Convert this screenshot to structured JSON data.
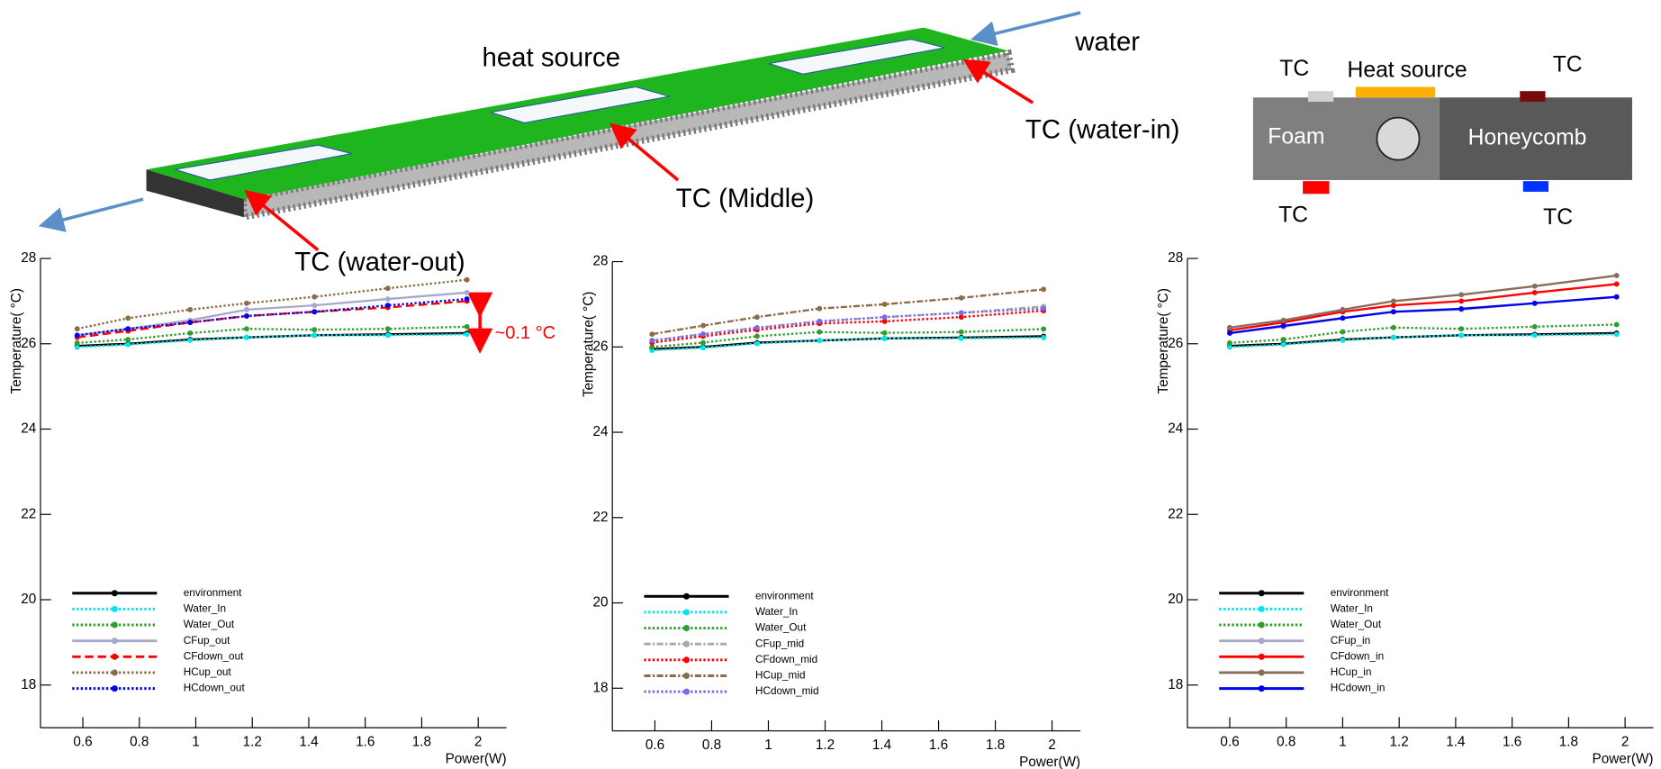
{
  "diagram": {
    "heat_source_label": "heat source",
    "water_label": "water",
    "tc_water_in": "TC (water-in)",
    "tc_middle": "TC (Middle)",
    "tc_water_out": "TC (water-out)",
    "schematic": {
      "tc_top_left": "TC",
      "heat_source": "Heat source",
      "tc_top_right": "TC",
      "foam": "Foam",
      "honeycomb": "Honeycomb",
      "tc_bottom_left": "TC",
      "tc_bottom_right": "TC"
    }
  },
  "chart_data": [
    {
      "type": "line",
      "x_label": "Power(W)",
      "y_label": "Temperature( °C)",
      "annotation": "~0.1 °C",
      "xlim": [
        0.45,
        2.1
      ],
      "ylim": [
        17,
        28
      ],
      "xticks": [
        0.6,
        0.8,
        1,
        1.2,
        1.4,
        1.6,
        1.8,
        2
      ],
      "yticks": [
        18,
        20,
        22,
        24,
        26,
        28
      ],
      "legend": "lower-left",
      "x": [
        0.58,
        0.76,
        0.98,
        1.18,
        1.42,
        1.68,
        1.96
      ],
      "series": [
        {
          "name": "environment",
          "color": "#000000",
          "dash": "solid",
          "values": [
            25.95,
            26.0,
            26.1,
            26.15,
            26.2,
            26.22,
            26.25
          ]
        },
        {
          "name": "Water_In",
          "color": "#00e5ee",
          "dash": "dotted",
          "values": [
            25.92,
            25.98,
            26.08,
            26.15,
            26.2,
            26.2,
            26.22
          ]
        },
        {
          "name": "Water_Out",
          "color": "#2e9e2e",
          "dash": "dotted",
          "values": [
            26.02,
            26.1,
            26.25,
            26.35,
            26.33,
            26.35,
            26.4
          ]
        },
        {
          "name": "CFup_out",
          "color": "#a8a8cc",
          "dash": "solid",
          "values": [
            26.2,
            26.35,
            26.55,
            26.8,
            26.9,
            27.05,
            27.2
          ]
        },
        {
          "name": "CFdown_out",
          "color": "#ff0000",
          "dash": "dashed",
          "values": [
            26.15,
            26.3,
            26.5,
            26.65,
            26.75,
            26.85,
            27.0
          ]
        },
        {
          "name": "HCup_out",
          "color": "#8b6b4a",
          "dash": "dotted",
          "values": [
            26.35,
            26.6,
            26.8,
            26.95,
            27.1,
            27.3,
            27.5
          ]
        },
        {
          "name": "HCdown_out",
          "color": "#0000ee",
          "dash": "dotted",
          "values": [
            26.2,
            26.35,
            26.5,
            26.65,
            26.75,
            26.9,
            27.05
          ]
        }
      ]
    },
    {
      "type": "line",
      "x_label": "Power(W)",
      "y_label": "Temperature( °C)",
      "xlim": [
        0.45,
        2.1
      ],
      "ylim": [
        17,
        28
      ],
      "xticks": [
        0.6,
        0.8,
        1,
        1.2,
        1.4,
        1.6,
        1.8,
        2
      ],
      "yticks": [
        18,
        20,
        22,
        24,
        26,
        28
      ],
      "legend": "lower-left",
      "x": [
        0.59,
        0.77,
        0.96,
        1.18,
        1.41,
        1.68,
        1.97
      ],
      "series": [
        {
          "name": "environment",
          "color": "#000000",
          "dash": "solid",
          "values": [
            25.95,
            26.0,
            26.1,
            26.15,
            26.2,
            26.22,
            26.25
          ]
        },
        {
          "name": "Water_In",
          "color": "#00e5ee",
          "dash": "dotted",
          "values": [
            25.92,
            25.98,
            26.08,
            26.15,
            26.2,
            26.2,
            26.22
          ]
        },
        {
          "name": "Water_Out",
          "color": "#2e9e2e",
          "dash": "dotted",
          "values": [
            26.0,
            26.1,
            26.25,
            26.35,
            26.33,
            26.35,
            26.42
          ]
        },
        {
          "name": "CFup_mid",
          "color": "#a8a8a8",
          "dash": "dash-dot",
          "values": [
            26.15,
            26.3,
            26.45,
            26.6,
            26.7,
            26.8,
            26.95
          ]
        },
        {
          "name": "CFdown_mid",
          "color": "#ff0000",
          "dash": "dotted",
          "values": [
            26.1,
            26.25,
            26.4,
            26.55,
            26.6,
            26.7,
            26.85
          ]
        },
        {
          "name": "HCup_mid",
          "color": "#8b6b4a",
          "dash": "dash-dot",
          "values": [
            26.3,
            26.5,
            26.7,
            26.9,
            27.0,
            27.15,
            27.35
          ]
        },
        {
          "name": "HCdown_mid",
          "color": "#7b68ee",
          "dash": "dotted",
          "values": [
            26.15,
            26.3,
            26.45,
            26.6,
            26.7,
            26.8,
            26.9
          ]
        }
      ]
    },
    {
      "type": "line",
      "x_label": "Power(W)",
      "y_label": "Temperature( °C)",
      "xlim": [
        0.45,
        2.1
      ],
      "ylim": [
        17,
        28
      ],
      "xticks": [
        0.6,
        0.8,
        1,
        1.2,
        1.4,
        1.6,
        1.8,
        2
      ],
      "yticks": [
        18,
        20,
        22,
        24,
        26,
        28
      ],
      "legend": "lower-left",
      "x": [
        0.6,
        0.79,
        1.0,
        1.18,
        1.42,
        1.68,
        1.97
      ],
      "series": [
        {
          "name": "environment",
          "color": "#000000",
          "dash": "solid",
          "values": [
            25.95,
            26.0,
            26.1,
            26.15,
            26.2,
            26.22,
            26.25
          ]
        },
        {
          "name": "Water_In",
          "color": "#00e5ee",
          "dash": "dotted",
          "values": [
            25.92,
            25.98,
            26.08,
            26.15,
            26.2,
            26.2,
            26.22
          ]
        },
        {
          "name": "Water_Out",
          "color": "#2e9e2e",
          "dash": "dotted",
          "values": [
            26.02,
            26.1,
            26.28,
            26.38,
            26.35,
            26.4,
            26.45
          ]
        },
        {
          "name": "CFup_in",
          "color": "#a8a8cc",
          "dash": "solid",
          "values": [
            26.25,
            26.4,
            26.6,
            26.75,
            26.8,
            26.95,
            27.1
          ]
        },
        {
          "name": "CFdown_in",
          "color": "#ff0000",
          "dash": "solid",
          "values": [
            26.32,
            26.5,
            26.75,
            26.9,
            27.0,
            27.2,
            27.4
          ]
        },
        {
          "name": "HCup_in",
          "color": "#8b6b5a",
          "dash": "solid",
          "values": [
            26.38,
            26.55,
            26.8,
            27.0,
            27.15,
            27.35,
            27.6
          ]
        },
        {
          "name": "HCdown_in",
          "color": "#0000ee",
          "dash": "solid",
          "values": [
            26.25,
            26.42,
            26.6,
            26.75,
            26.82,
            26.95,
            27.1
          ]
        }
      ]
    }
  ]
}
